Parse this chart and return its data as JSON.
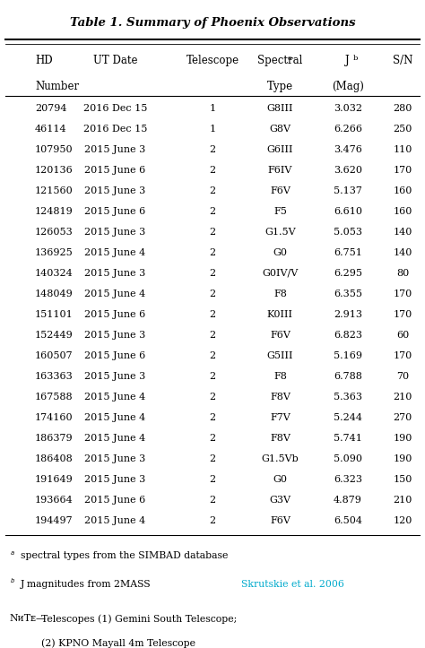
{
  "title": "Table 1. Summary of Phoenix Observations",
  "columns": [
    "HD\nNumber",
    "UT Date",
    "Telescope",
    "Spectral$^a$\nType",
    "J$^b$\n(Mag)",
    "S/N"
  ],
  "col_headers_line1": [
    "HD",
    "UT Date",
    "Telescope",
    "Spectral",
    "J",
    "S/N"
  ],
  "col_headers_line2": [
    "Number",
    "",
    "",
    "Type",
    "(Mag)",
    ""
  ],
  "rows": [
    [
      "20794",
      "2016 Dec 15",
      "1",
      "G8III",
      "3.032",
      "280"
    ],
    [
      "46114",
      "2016 Dec 15",
      "1",
      "G8V",
      "6.266",
      "250"
    ],
    [
      "107950",
      "2015 June 3",
      "2",
      "G6III",
      "3.476",
      "110"
    ],
    [
      "120136",
      "2015 June 6",
      "2",
      "F6IV",
      "3.620",
      "170"
    ],
    [
      "121560",
      "2015 June 3",
      "2",
      "F6V",
      "5.137",
      "160"
    ],
    [
      "124819",
      "2015 June 6",
      "2",
      "F5",
      "6.610",
      "160"
    ],
    [
      "126053",
      "2015 June 3",
      "2",
      "G1.5V",
      "5.053",
      "140"
    ],
    [
      "136925",
      "2015 June 4",
      "2",
      "G0",
      "6.751",
      "140"
    ],
    [
      "140324",
      "2015 June 3",
      "2",
      "G0IV/V",
      "6.295",
      "80"
    ],
    [
      "148049",
      "2015 June 4",
      "2",
      "F8",
      "6.355",
      "170"
    ],
    [
      "151101",
      "2015 June 6",
      "2",
      "K0III",
      "2.913",
      "170"
    ],
    [
      "152449",
      "2015 June 3",
      "2",
      "F6V",
      "6.823",
      "60"
    ],
    [
      "160507",
      "2015 June 6",
      "2",
      "G5III",
      "5.169",
      "170"
    ],
    [
      "163363",
      "2015 June 3",
      "2",
      "F8",
      "6.788",
      "70"
    ],
    [
      "167588",
      "2015 June 4",
      "2",
      "F8V",
      "5.363",
      "210"
    ],
    [
      "174160",
      "2015 June 4",
      "2",
      "F7V",
      "5.244",
      "270"
    ],
    [
      "186379",
      "2015 June 4",
      "2",
      "F8V",
      "5.741",
      "190"
    ],
    [
      "186408",
      "2015 June 3",
      "2",
      "G1.5Vb",
      "5.090",
      "190"
    ],
    [
      "191649",
      "2015 June 3",
      "2",
      "G0",
      "6.323",
      "150"
    ],
    [
      "193664",
      "2015 June 6",
      "2",
      "G3V",
      "4.879",
      "210"
    ],
    [
      "194497",
      "2015 June 4",
      "2",
      "F6V",
      "6.504",
      "120"
    ]
  ],
  "footnote_a": "spectral types from the SIMBAD database",
  "footnote_b": "J magnitudes from 2MASS ",
  "footnote_b_link": "Skrutskie et al. 2006",
  "footnote_link_color": "#00AACC",
  "note_text": "NOTE—Telescopes (1) Gemini South Telescope;\n  (2) KPNO Mayall 4m Telescope",
  "bg_color": "white",
  "text_color": "black"
}
